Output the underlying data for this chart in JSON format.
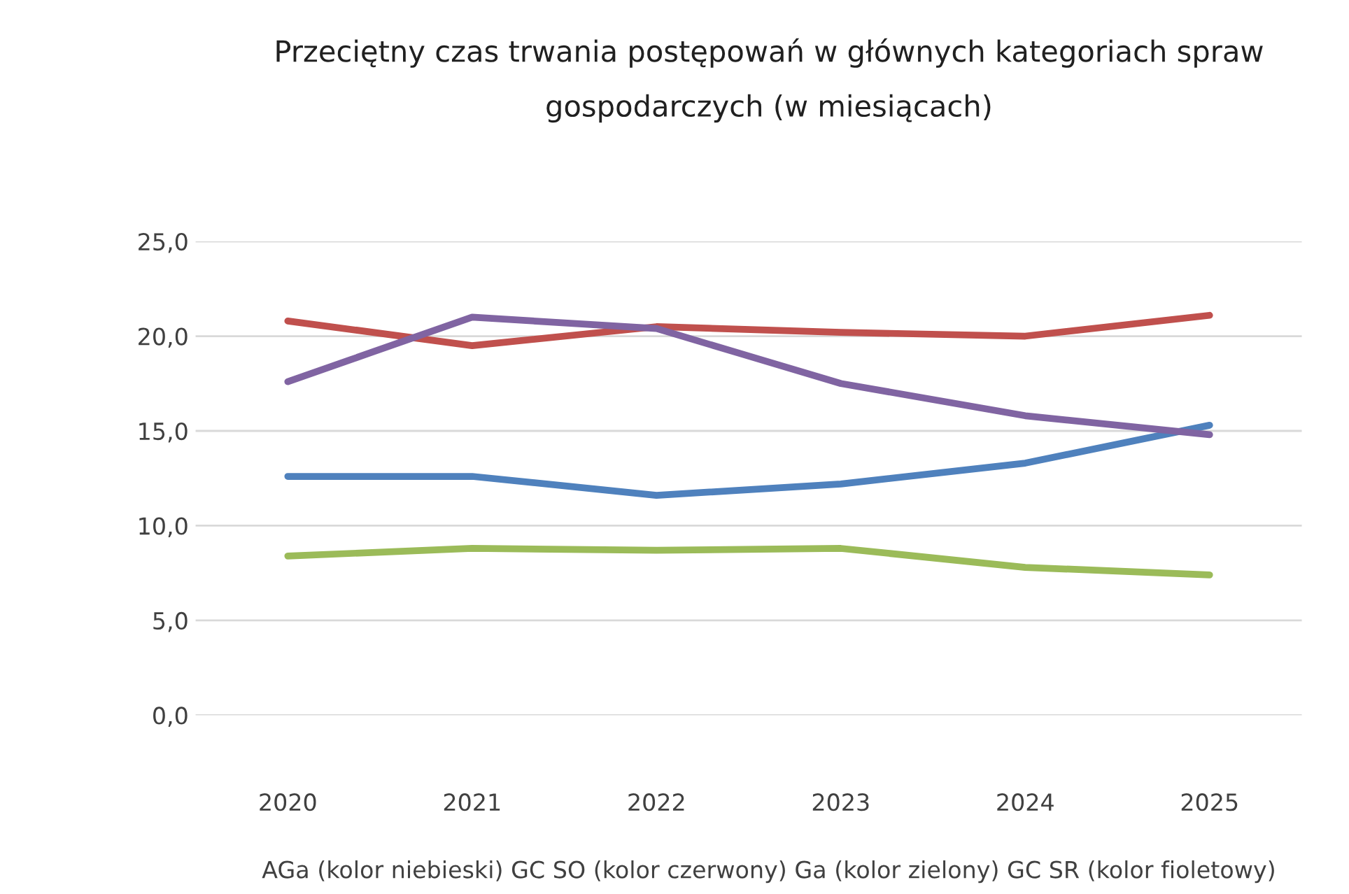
{
  "chart_data": {
    "type": "line",
    "title": "Przeciętny czas trwania postępowań w głównych kategoriach spraw\ngospodarczych (w miesiącach)",
    "categories": [
      "2020",
      "2021",
      "2022",
      "2023",
      "2024",
      "2025"
    ],
    "series": [
      {
        "color": "#4f81bd",
        "values": [
          12.6,
          12.6,
          11.6,
          12.2,
          13.3,
          15.3
        ]
      },
      {
        "color": "#c0504d",
        "values": [
          20.8,
          19.5,
          20.5,
          20.2,
          20.0,
          21.1
        ]
      },
      {
        "color": "#9bbb59",
        "values": [
          8.4,
          8.8,
          8.7,
          8.8,
          7.8,
          7.4
        ]
      },
      {
        "color": "#8064a2",
        "values": [
          17.6,
          21.0,
          20.4,
          17.5,
          15.8,
          14.8
        ]
      }
    ],
    "ylim": [
      0,
      25
    ],
    "yticks": [
      {
        "value": 0,
        "label": "0,0"
      },
      {
        "value": 5,
        "label": "5,0"
      },
      {
        "value": 10,
        "label": "10,0"
      },
      {
        "value": 15,
        "label": "15,0"
      },
      {
        "value": 20,
        "label": "20,0"
      },
      {
        "value": 25,
        "label": "25,0"
      }
    ],
    "grid": "y",
    "marker": "none",
    "line_style": "solid",
    "annotations": [
      "AGa (kolor niebieski) GC SO (kolor czerwony) Ga (kolor zielony) GC SR (kolor fioletowy)"
    ]
  }
}
